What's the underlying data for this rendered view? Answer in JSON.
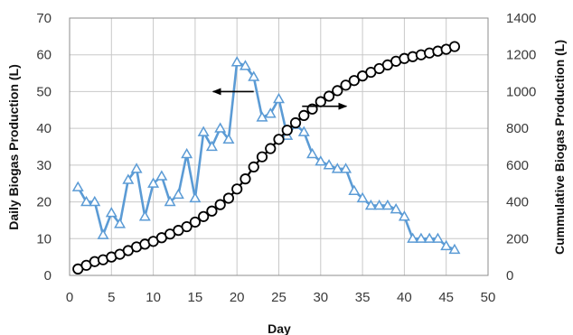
{
  "chart_data": {
    "type": "line",
    "title": "",
    "xlabel": "Day",
    "ylabel": "Daily Biogas Production (L)",
    "y2label": "Cummulative Biogas Production (L)",
    "xlim": [
      0,
      50
    ],
    "ylim": [
      0,
      70
    ],
    "y2lim": [
      0,
      1400
    ],
    "x_ticks": [
      "0",
      "5",
      "10",
      "15",
      "20",
      "25",
      "30",
      "35",
      "40",
      "45",
      "50"
    ],
    "y_ticks": [
      "0",
      "10",
      "20",
      "30",
      "40",
      "50",
      "60",
      "70"
    ],
    "y2_ticks": [
      "0",
      "200",
      "400",
      "600",
      "800",
      "1000",
      "1200",
      "1400"
    ],
    "grid": true,
    "legend": "none",
    "series": [
      {
        "axis": "left",
        "color": "#5B9BD5",
        "marker": "triangle",
        "x": [
          1,
          2,
          3,
          4,
          5,
          6,
          7,
          8,
          9,
          10,
          11,
          12,
          13,
          14,
          15,
          16,
          17,
          18,
          19,
          20,
          21,
          22,
          23,
          24,
          25,
          26,
          27,
          28,
          29,
          30,
          31,
          32,
          33,
          34,
          35,
          36,
          37,
          38,
          39,
          40,
          41,
          42,
          43,
          44,
          45,
          46
        ],
        "values": [
          24,
          20,
          20,
          11,
          17,
          14,
          26,
          29,
          16,
          25,
          27,
          20,
          22,
          33,
          21,
          39,
          35,
          40,
          37,
          58,
          57,
          54,
          43,
          44,
          48,
          38,
          41,
          39,
          33,
          31,
          30,
          29,
          29,
          23,
          21,
          19,
          19,
          19,
          18,
          16,
          10,
          10,
          10,
          10,
          8,
          7
        ]
      },
      {
        "axis": "right",
        "color": "#000000",
        "marker": "circle",
        "x": [
          1,
          2,
          3,
          4,
          5,
          6,
          7,
          8,
          9,
          10,
          11,
          12,
          13,
          14,
          15,
          16,
          17,
          18,
          19,
          20,
          21,
          22,
          23,
          24,
          25,
          26,
          27,
          28,
          29,
          30,
          31,
          32,
          33,
          34,
          35,
          36,
          37,
          38,
          39,
          40,
          41,
          42,
          43,
          44,
          45,
          46
        ],
        "values": [
          35,
          55,
          75,
          85,
          100,
          115,
          135,
          155,
          170,
          185,
          205,
          225,
          245,
          265,
          290,
          320,
          350,
          385,
          420,
          470,
          525,
          590,
          645,
          690,
          740,
          790,
          830,
          870,
          905,
          945,
          975,
          1005,
          1035,
          1060,
          1085,
          1105,
          1125,
          1145,
          1165,
          1180,
          1190,
          1200,
          1210,
          1220,
          1230,
          1245
        ]
      }
    ],
    "annotations": [
      {
        "type": "arrow",
        "direction": "left",
        "points_to": "left-axis",
        "near_x": 22,
        "near_y": 50
      },
      {
        "type": "arrow",
        "direction": "right",
        "points_to": "right-axis",
        "near_x": 28,
        "near_y": 46
      }
    ]
  }
}
